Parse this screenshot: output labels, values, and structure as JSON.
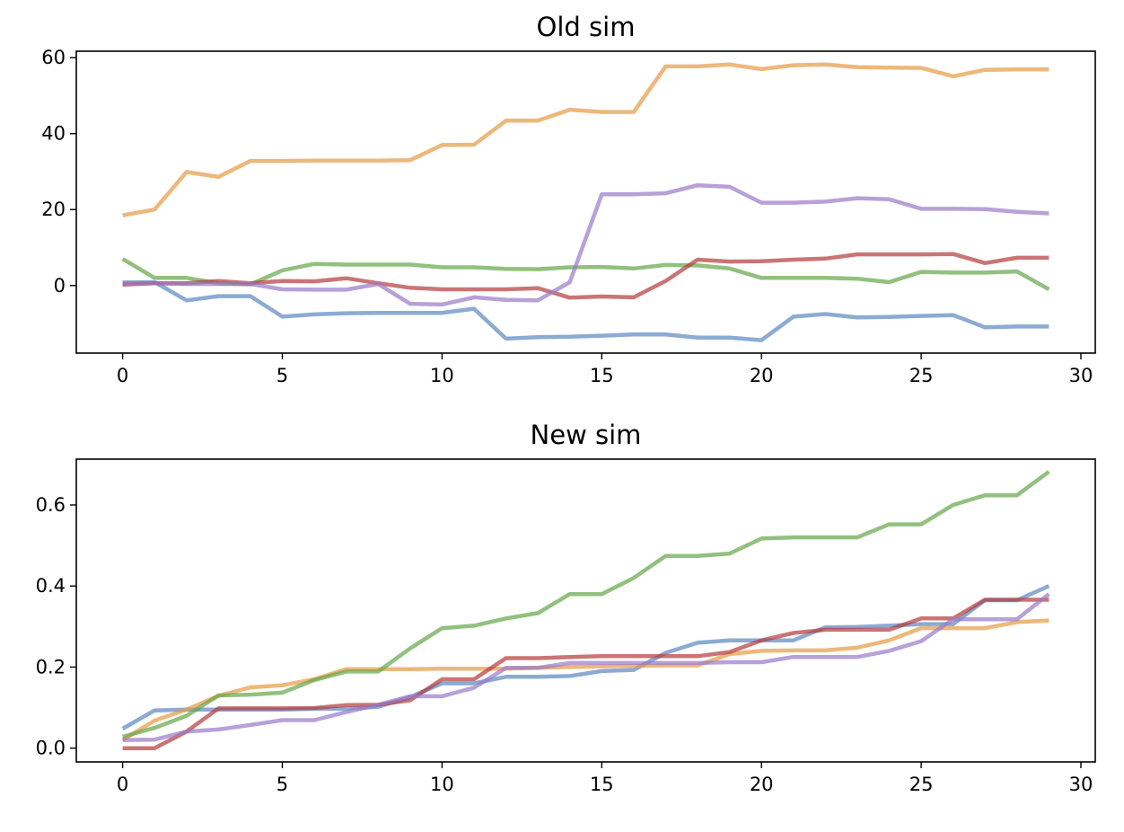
{
  "chart_data": [
    {
      "type": "line",
      "title": "Old sim",
      "xlabel": "",
      "ylabel": "",
      "xlim": [
        -1.45,
        30.45
      ],
      "ylim": [
        -17.8,
        61.7
      ],
      "xticks": [
        0,
        5,
        10,
        15,
        20,
        25,
        30
      ],
      "yticks": [
        0,
        20,
        40,
        60
      ],
      "grid": false,
      "x": [
        0,
        1,
        2,
        3,
        4,
        5,
        6,
        7,
        8,
        9,
        10,
        11,
        12,
        13,
        14,
        15,
        16,
        17,
        18,
        19,
        20,
        21,
        22,
        23,
        24,
        25,
        26,
        27,
        28,
        29
      ],
      "series": [
        {
          "color": "#5a88c0",
          "values": [
            0.8,
            0.9,
            -3.9,
            -2.8,
            -2.8,
            -8.2,
            -7.6,
            -7.3,
            -7.2,
            -7.2,
            -7.2,
            -6.1,
            -14.0,
            -13.6,
            -13.5,
            -13.2,
            -12.9,
            -12.9,
            -13.7,
            -13.7,
            -14.4,
            -8.2,
            -7.5,
            -8.4,
            -8.3,
            -8.0,
            -7.8,
            -11.0,
            -10.8,
            -10.8
          ]
        },
        {
          "color": "#e59a43",
          "values": [
            18.5,
            20.0,
            29.9,
            28.6,
            32.8,
            32.8,
            32.9,
            32.9,
            32.9,
            33.0,
            37.0,
            37.1,
            43.4,
            43.4,
            46.3,
            45.7,
            45.7,
            57.7,
            57.7,
            58.2,
            57.0,
            58.0,
            58.2,
            57.5,
            57.4,
            57.3,
            55.1,
            56.8,
            56.9,
            56.9
          ]
        },
        {
          "color": "#64a548",
          "values": [
            7.0,
            2.0,
            2.0,
            0.6,
            0.3,
            4.0,
            5.7,
            5.5,
            5.5,
            5.5,
            4.8,
            4.8,
            4.4,
            4.3,
            4.8,
            4.9,
            4.5,
            5.4,
            5.3,
            4.5,
            2.0,
            2.0,
            2.0,
            1.8,
            0.9,
            3.6,
            3.4,
            3.4,
            3.7,
            -1.0
          ]
        },
        {
          "color": "#b33b3b",
          "values": [
            0.2,
            0.6,
            0.6,
            1.2,
            0.6,
            1.2,
            1.1,
            1.9,
            0.6,
            -0.6,
            -1.0,
            -1.0,
            -1.0,
            -0.7,
            -3.2,
            -2.9,
            -3.1,
            1.2,
            6.8,
            6.3,
            6.4,
            6.8,
            7.1,
            8.2,
            8.2,
            8.2,
            8.3,
            5.9,
            7.3,
            7.3
          ]
        },
        {
          "color": "#9979c7",
          "values": [
            0.6,
            0.6,
            0.4,
            0.4,
            0.4,
            -1.0,
            -1.1,
            -1.1,
            0.4,
            -4.8,
            -5.0,
            -3.1,
            -3.8,
            -3.9,
            0.9,
            24.0,
            24.0,
            24.3,
            26.4,
            26.0,
            21.8,
            21.8,
            22.1,
            23.0,
            22.7,
            20.2,
            20.2,
            20.1,
            19.4,
            19.0
          ]
        }
      ]
    },
    {
      "type": "line",
      "title": "New sim",
      "xlabel": "",
      "ylabel": "",
      "xlim": [
        -1.45,
        30.45
      ],
      "ylim": [
        -0.034,
        0.713
      ],
      "xticks": [
        0,
        5,
        10,
        15,
        20,
        25,
        30
      ],
      "yticks": [
        0.0,
        0.2,
        0.4,
        0.6
      ],
      "ytick_labels": [
        "0.0",
        "0.2",
        "0.4",
        "0.6"
      ],
      "grid": false,
      "x": [
        0,
        1,
        2,
        3,
        4,
        5,
        6,
        7,
        8,
        9,
        10,
        11,
        12,
        13,
        14,
        15,
        16,
        17,
        18,
        19,
        20,
        21,
        22,
        23,
        24,
        25,
        26,
        27,
        28,
        29
      ],
      "series": [
        {
          "color": "#5a88c0",
          "values": [
            0.048,
            0.093,
            0.095,
            0.095,
            0.095,
            0.095,
            0.097,
            0.097,
            0.102,
            0.126,
            0.16,
            0.16,
            0.176,
            0.176,
            0.178,
            0.19,
            0.193,
            0.235,
            0.26,
            0.266,
            0.266,
            0.266,
            0.298,
            0.299,
            0.302,
            0.306,
            0.306,
            0.365,
            0.365,
            0.4
          ]
        },
        {
          "color": "#e59a43",
          "values": [
            0.02,
            0.068,
            0.095,
            0.129,
            0.15,
            0.155,
            0.17,
            0.195,
            0.195,
            0.195,
            0.196,
            0.196,
            0.196,
            0.198,
            0.2,
            0.202,
            0.203,
            0.204,
            0.204,
            0.232,
            0.24,
            0.241,
            0.241,
            0.248,
            0.266,
            0.296,
            0.296,
            0.296,
            0.311,
            0.315
          ]
        },
        {
          "color": "#64a548",
          "values": [
            0.028,
            0.05,
            0.08,
            0.13,
            0.132,
            0.137,
            0.168,
            0.189,
            0.189,
            0.246,
            0.296,
            0.302,
            0.32,
            0.333,
            0.38,
            0.38,
            0.42,
            0.474,
            0.474,
            0.48,
            0.517,
            0.52,
            0.52,
            0.52,
            0.552,
            0.552,
            0.6,
            0.624,
            0.624,
            0.682
          ]
        },
        {
          "color": "#b33b3b",
          "values": [
            0.0,
            0.0,
            0.041,
            0.098,
            0.098,
            0.098,
            0.099,
            0.106,
            0.107,
            0.118,
            0.17,
            0.17,
            0.222,
            0.222,
            0.225,
            0.227,
            0.227,
            0.227,
            0.227,
            0.237,
            0.266,
            0.284,
            0.292,
            0.292,
            0.292,
            0.32,
            0.32,
            0.366,
            0.366,
            0.366
          ]
        },
        {
          "color": "#9979c7",
          "values": [
            0.02,
            0.021,
            0.041,
            0.046,
            0.057,
            0.069,
            0.069,
            0.089,
            0.107,
            0.128,
            0.128,
            0.149,
            0.198,
            0.198,
            0.21,
            0.21,
            0.21,
            0.21,
            0.21,
            0.212,
            0.212,
            0.225,
            0.225,
            0.225,
            0.24,
            0.264,
            0.318,
            0.318,
            0.318,
            0.38
          ]
        }
      ]
    }
  ]
}
